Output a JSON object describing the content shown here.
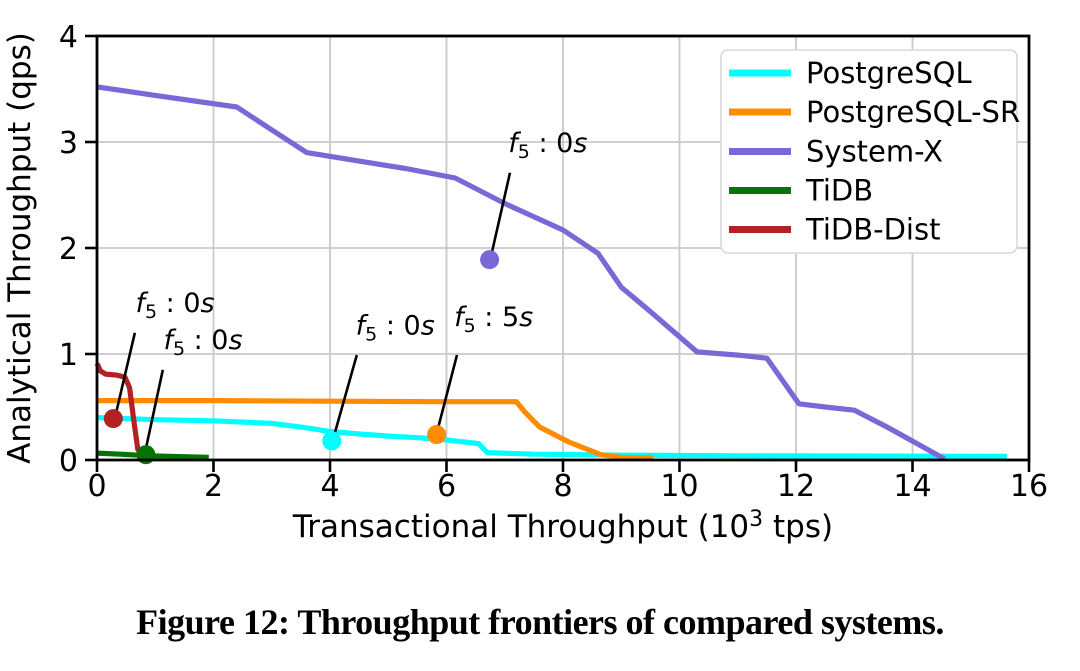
{
  "figure": {
    "caption": "Figure 12: Throughput frontiers of compared systems."
  },
  "chart_data": {
    "type": "line",
    "title": "",
    "xlabel": "Transactional Throughput (10^3 tps)",
    "xlabel_parts": {
      "pre": "Transactional Throughput (10",
      "sup": "3",
      "post": " tps)"
    },
    "ylabel": "Analytical Throughput (qps)",
    "xlim": [
      0,
      16
    ],
    "ylim": [
      0,
      4
    ],
    "xticks": [
      0,
      2,
      4,
      6,
      8,
      10,
      12,
      14,
      16
    ],
    "yticks": [
      0,
      1,
      2,
      3,
      4
    ],
    "grid": true,
    "colors": {
      "grid": "#c9c9c9",
      "axis": "#000000",
      "leader": "#000000",
      "legend_border": "#d9d9d9",
      "legend_bg": "#ffffff"
    },
    "legend": {
      "position": "upper right",
      "entries": [
        {
          "label": "PostgreSQL",
          "color": "#00ffff"
        },
        {
          "label": "PostgreSQL-SR",
          "color": "#ff8c00"
        },
        {
          "label": "System-X",
          "color": "#7869d7"
        },
        {
          "label": "TiDB",
          "color": "#047404"
        },
        {
          "label": "TiDB-Dist",
          "color": "#b22222"
        }
      ]
    },
    "series": [
      {
        "name": "PostgreSQL",
        "color": "#00ffff",
        "points": [
          [
            0,
            0.4
          ],
          [
            1,
            0.38
          ],
          [
            2,
            0.37
          ],
          [
            3,
            0.345
          ],
          [
            3.5,
            0.31
          ],
          [
            4,
            0.27
          ],
          [
            4.5,
            0.245
          ],
          [
            5,
            0.225
          ],
          [
            5.5,
            0.21
          ],
          [
            6,
            0.19
          ],
          [
            6.55,
            0.155
          ],
          [
            6.7,
            0.07
          ],
          [
            7.5,
            0.055
          ],
          [
            9,
            0.045
          ],
          [
            11,
            0.04
          ],
          [
            13,
            0.038
          ],
          [
            15.62,
            0.035
          ]
        ]
      },
      {
        "name": "PostgreSQL-SR",
        "color": "#ff8c00",
        "points": [
          [
            0,
            0.56
          ],
          [
            2,
            0.56
          ],
          [
            4,
            0.555
          ],
          [
            6,
            0.55
          ],
          [
            7.2,
            0.55
          ],
          [
            7.35,
            0.45
          ],
          [
            7.6,
            0.31
          ],
          [
            8.1,
            0.17
          ],
          [
            8.65,
            0.05
          ],
          [
            9.0,
            0.025
          ],
          [
            9.55,
            0.02
          ]
        ]
      },
      {
        "name": "System-X",
        "color": "#7869d7",
        "points": [
          [
            0,
            3.52
          ],
          [
            1,
            3.44
          ],
          [
            2.4,
            3.33
          ],
          [
            2.9,
            3.15
          ],
          [
            3.6,
            2.9
          ],
          [
            4.5,
            2.82
          ],
          [
            5.3,
            2.75
          ],
          [
            6.15,
            2.66
          ],
          [
            7.0,
            2.42
          ],
          [
            8.0,
            2.17
          ],
          [
            8.6,
            1.95
          ],
          [
            9.0,
            1.63
          ],
          [
            9.5,
            1.4
          ],
          [
            10.3,
            1.02
          ],
          [
            11.0,
            0.99
          ],
          [
            11.5,
            0.96
          ],
          [
            12.05,
            0.53
          ],
          [
            12.5,
            0.5
          ],
          [
            13.0,
            0.47
          ],
          [
            13.6,
            0.3
          ],
          [
            14.55,
            0.01
          ]
        ]
      },
      {
        "name": "TiDB",
        "color": "#047404",
        "points": [
          [
            0,
            0.065
          ],
          [
            0.4,
            0.055
          ],
          [
            0.9,
            0.04
          ],
          [
            1.4,
            0.032
          ],
          [
            1.92,
            0.025
          ]
        ]
      },
      {
        "name": "TiDB-Dist",
        "color": "#b22222",
        "points": [
          [
            0,
            0.91
          ],
          [
            0.06,
            0.84
          ],
          [
            0.15,
            0.81
          ],
          [
            0.35,
            0.8
          ],
          [
            0.48,
            0.78
          ],
          [
            0.56,
            0.68
          ],
          [
            0.63,
            0.38
          ],
          [
            0.7,
            0.1
          ],
          [
            0.78,
            0.045
          ],
          [
            0.88,
            0.04
          ]
        ]
      }
    ],
    "annotations": [
      {
        "series": "TiDB-Dist",
        "label_value": "0s",
        "marker": [
          0.28,
          0.39
        ],
        "text_at": [
          1.34,
          1.48
        ],
        "leader": [
          [
            0.65,
            1.2
          ],
          [
            0.33,
            0.45
          ]
        ],
        "color": "#b22222"
      },
      {
        "series": "TiDB",
        "label_value": "0s",
        "marker": [
          0.84,
          0.05
        ],
        "text_at": [
          1.82,
          1.13
        ],
        "leader": [
          [
            1.13,
            0.85
          ],
          [
            0.84,
            0.11
          ]
        ],
        "color": "#047404"
      },
      {
        "series": "PostgreSQL",
        "label_value": "0s",
        "marker": [
          4.03,
          0.18
        ],
        "text_at": [
          5.12,
          1.27
        ],
        "leader": [
          [
            4.46,
            0.99
          ],
          [
            4.07,
            0.23
          ]
        ],
        "color": "#00ffff"
      },
      {
        "series": "PostgreSQL-SR",
        "label_value": "5s",
        "marker": [
          5.83,
          0.24
        ],
        "text_at": [
          6.81,
          1.35
        ],
        "leader": [
          [
            6.18,
            0.99
          ],
          [
            5.85,
            0.29
          ]
        ],
        "color": "#ff8c00"
      },
      {
        "series": "System-X",
        "label_value": "0s",
        "marker": [
          6.74,
          1.89
        ],
        "text_at": [
          7.74,
          2.99
        ],
        "leader": [
          [
            7.09,
            2.71
          ],
          [
            6.78,
            1.96
          ]
        ],
        "color": "#7869d7"
      }
    ]
  }
}
